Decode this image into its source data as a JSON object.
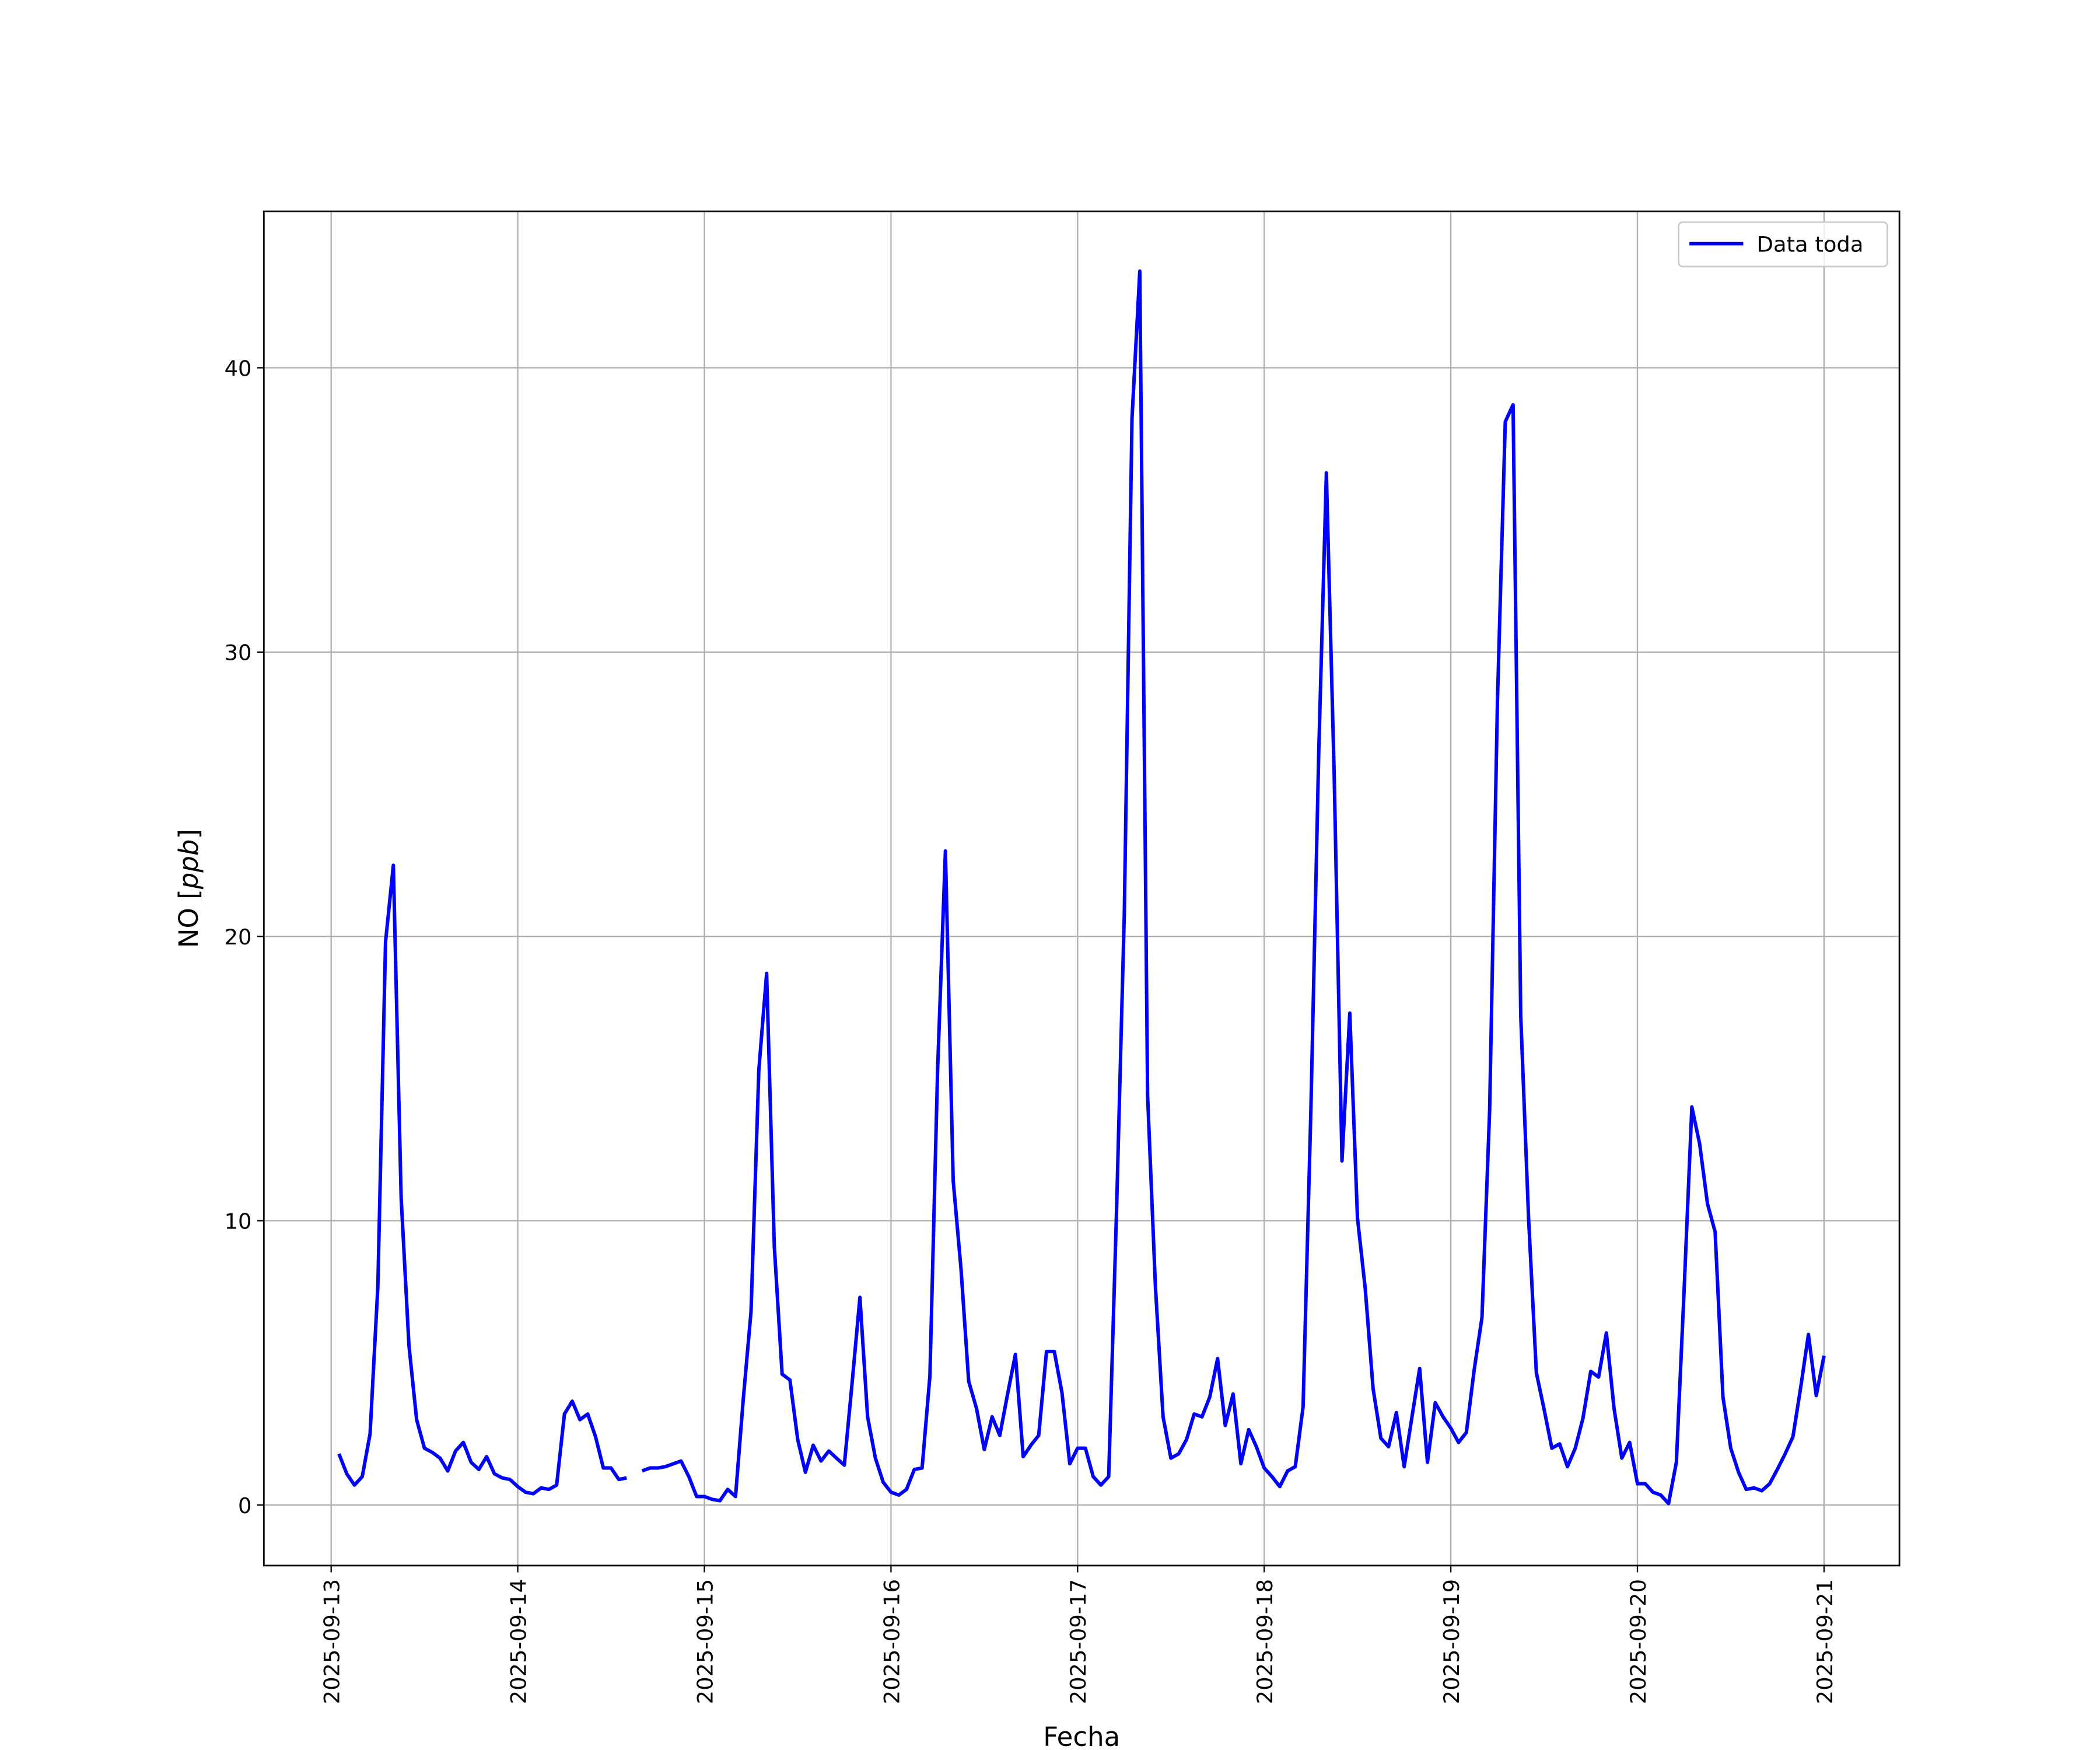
{
  "chart_data": {
    "type": "line",
    "title": "",
    "xlabel": "Fecha",
    "ylabel": {
      "text": "NO ",
      "unit": "ppb"
    },
    "x_ticks": [
      "2025-09-13",
      "2025-09-14",
      "2025-09-15",
      "2025-09-16",
      "2025-09-17",
      "2025-09-18",
      "2025-09-19",
      "2025-09-20",
      "2025-09-21"
    ],
    "y_ticks": [
      0,
      10,
      20,
      30,
      40
    ],
    "xlim": [
      "2025-09-12 15:20",
      "2025-09-21 09:50"
    ],
    "ylim": [
      -2.1,
      45.5
    ],
    "grid": true,
    "legend": {
      "placement": "upper right",
      "entries": [
        "Data toda"
      ]
    },
    "series": [
      {
        "name": "Data toda",
        "color": "#0000ff",
        "resolution": "hourly",
        "days": [
          {
            "date": "2025-09-13",
            "hourly_values": [
              null,
              1.8,
              1.1,
              0.7,
              1.0,
              2.5,
              7.7,
              19.8,
              22.5,
              10.8,
              5.6,
              3.0,
              2.0,
              1.85,
              1.65,
              1.2,
              1.9,
              2.2,
              1.5,
              1.25,
              1.7,
              1.1,
              0.95,
              0.9
            ]
          },
          {
            "date": "2025-09-14",
            "hourly_values": [
              0.65,
              0.45,
              0.4,
              0.6,
              0.55,
              0.7,
              3.2,
              3.65,
              3.0,
              3.2,
              2.4,
              1.3,
              1.3,
              0.9,
              0.95,
              null,
              1.2,
              1.3,
              1.3,
              1.35,
              1.45,
              1.55,
              1.0,
              0.3
            ]
          },
          {
            "date": "2025-09-15",
            "hourly_values": [
              0.3,
              0.2,
              0.15,
              0.55,
              0.3,
              3.7,
              6.8,
              15.3,
              18.7,
              9.1,
              4.6,
              4.4,
              2.3,
              1.15,
              2.1,
              1.55,
              1.9,
              1.65,
              1.4,
              4.3,
              7.3,
              3.1,
              1.65,
              0.8
            ]
          },
          {
            "date": "2025-09-16",
            "hourly_values": [
              0.45,
              0.35,
              0.55,
              1.25,
              1.3,
              4.55,
              15.3,
              23.0,
              11.4,
              8.3,
              4.35,
              3.4,
              1.95,
              3.1,
              2.45,
              3.9,
              5.3,
              1.7,
              2.1,
              2.45,
              5.4,
              5.4,
              3.95,
              1.45
            ]
          },
          {
            "date": "2025-09-17",
            "hourly_values": [
              2.0,
              2.0,
              1.0,
              0.7,
              1.0,
              10.3,
              20.8,
              38.2,
              43.4,
              14.4,
              7.7,
              3.1,
              1.65,
              1.8,
              2.3,
              3.2,
              3.1,
              3.8,
              5.15,
              2.8,
              3.9,
              1.45,
              2.65,
              2.05
            ]
          },
          {
            "date": "2025-09-18",
            "hourly_values": [
              1.3,
              1.0,
              0.65,
              1.2,
              1.35,
              3.45,
              13.9,
              26.4,
              36.3,
              25.7,
              12.1,
              17.3,
              10.1,
              7.6,
              4.1,
              2.35,
              2.05,
              3.25,
              1.35,
              3.1,
              4.8,
              1.5,
              3.6,
              3.1
            ]
          },
          {
            "date": "2025-09-19",
            "hourly_values": [
              2.7,
              2.2,
              2.55,
              4.75,
              6.6,
              13.9,
              28.3,
              38.1,
              38.7,
              17.2,
              10.1,
              4.65,
              3.35,
              2.0,
              2.15,
              1.35,
              2.0,
              3.05,
              4.7,
              4.5,
              6.05,
              3.4,
              1.65,
              2.2
            ]
          },
          {
            "date": "2025-09-20",
            "hourly_values": [
              0.75,
              0.75,
              0.45,
              0.35,
              0.05,
              1.5,
              7.5,
              14.0,
              12.7,
              10.6,
              9.6,
              3.8,
              2.0,
              1.15,
              0.55,
              0.6,
              0.5,
              0.75,
              1.25,
              1.8,
              2.4,
              4.15,
              6.0,
              3.85
            ]
          },
          {
            "date": "2025-09-21",
            "hourly_values": [
              5.25
            ]
          }
        ]
      }
    ]
  }
}
